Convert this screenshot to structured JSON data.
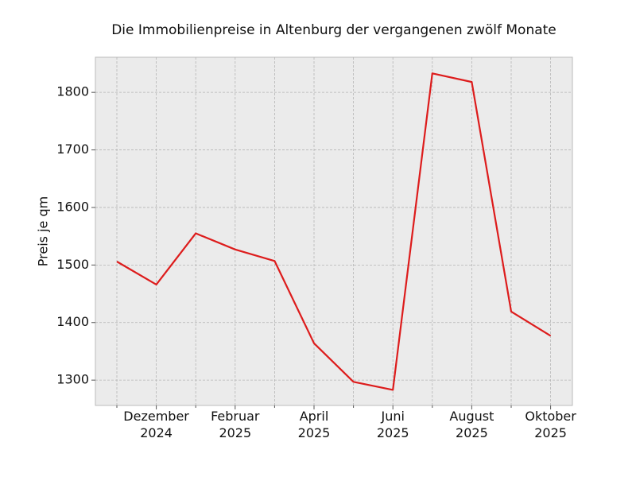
{
  "chart_data": {
    "type": "line",
    "title": "Die Immobilienpreise in Altenburg der vergangenen zwölf Monate",
    "y_label": "Preis je qm",
    "categories": [
      null,
      "Dezember\n2024",
      null,
      "Februar\n2025",
      null,
      "April\n2025",
      null,
      "Juni\n2025",
      null,
      "August\n2025",
      null,
      "Oktober\n2025"
    ],
    "values": [
      1506,
      1466,
      1555,
      1527,
      1507,
      1364,
      1297,
      1283,
      1833,
      1818,
      1419,
      1377
    ],
    "color": "#dd1c1c",
    "ylim": [
      1256,
      1861
    ],
    "yticks": [
      1300,
      1400,
      1500,
      1600,
      1700,
      1800
    ],
    "grid": true
  }
}
